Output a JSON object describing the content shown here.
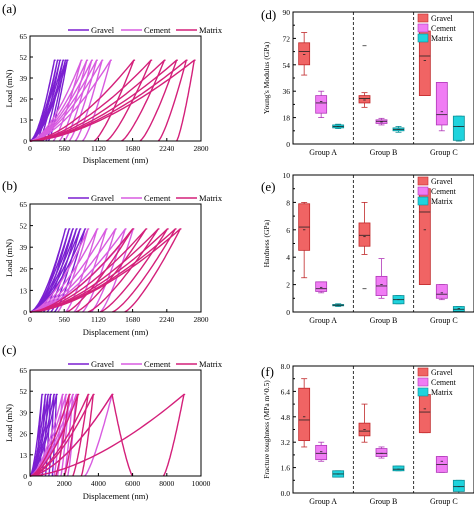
{
  "colors": {
    "gravel": "#7b1fd1",
    "cement": "#d85be0",
    "matrix": "#d4207a",
    "box_gravel": "#f06464",
    "box_cement": "#f07cf4",
    "box_matrix": "#1fd3dd"
  },
  "chart_data": [
    {
      "panel": "(a)",
      "type": "line",
      "xlabel": "Displacement (nm)",
      "ylabel": "Load (mN)",
      "xlim": [
        0,
        2800
      ],
      "ylim": [
        0,
        65
      ],
      "xticks": [
        "0",
        "560",
        "1120",
        "1680",
        "2240",
        "2800"
      ],
      "yticks": [
        "0",
        "13",
        "26",
        "39",
        "52",
        "65"
      ],
      "legend": "top",
      "series": [
        {
          "name": "Gravel",
          "color": "#7b1fd1",
          "curves": [
            {
              "residual": 60,
              "peak": 400
            },
            {
              "residual": 110,
              "peak": 450
            },
            {
              "residual": 150,
              "peak": 490
            },
            {
              "residual": 210,
              "peak": 540
            },
            {
              "residual": 260,
              "peak": 580
            },
            {
              "residual": 300,
              "peak": 610
            }
          ]
        },
        {
          "name": "Cement",
          "color": "#d85be0",
          "curves": [
            {
              "residual": 380,
              "peak": 840
            },
            {
              "residual": 480,
              "peak": 930
            },
            {
              "residual": 560,
              "peak": 1010
            },
            {
              "residual": 640,
              "peak": 1090
            },
            {
              "residual": 740,
              "peak": 1180
            },
            {
              "residual": 860,
              "peak": 1320
            }
          ]
        },
        {
          "name": "Matrix",
          "color": "#d4207a",
          "curves": [
            {
              "residual": 1050,
              "peak": 1700
            },
            {
              "residual": 1250,
              "peak": 1980
            },
            {
              "residual": 1500,
              "peak": 2200
            },
            {
              "residual": 1800,
              "peak": 2400
            },
            {
              "residual": 2100,
              "peak": 2560
            },
            {
              "residual": 2400,
              "peak": 2690
            }
          ]
        }
      ]
    },
    {
      "panel": "(b)",
      "type": "line",
      "xlabel": "Displacement (nm)",
      "ylabel": "Load (mN)",
      "xlim": [
        0,
        2800
      ],
      "ylim": [
        0,
        65
      ],
      "xticks": [
        "0",
        "560",
        "1120",
        "1680",
        "2240",
        "2800"
      ],
      "yticks": [
        "0",
        "13",
        "26",
        "39",
        "52",
        "65"
      ],
      "legend": "top",
      "series": [
        {
          "name": "Gravel",
          "color": "#7b1fd1",
          "curves": [
            {
              "residual": 120,
              "peak": 580
            },
            {
              "residual": 170,
              "peak": 640
            },
            {
              "residual": 220,
              "peak": 700
            },
            {
              "residual": 280,
              "peak": 760
            },
            {
              "residual": 340,
              "peak": 820
            },
            {
              "residual": 400,
              "peak": 900
            }
          ]
        },
        {
          "name": "Cement",
          "color": "#d85be0",
          "curves": [
            {
              "residual": 450,
              "peak": 950
            },
            {
              "residual": 580,
              "peak": 1100
            },
            {
              "residual": 720,
              "peak": 1250
            },
            {
              "residual": 860,
              "peak": 1400
            },
            {
              "residual": 1000,
              "peak": 1560
            },
            {
              "residual": 1150,
              "peak": 1690
            }
          ]
        },
        {
          "name": "Matrix",
          "color": "#d4207a",
          "curves": [
            {
              "residual": 600,
              "peak": 1680
            },
            {
              "residual": 750,
              "peak": 1900
            },
            {
              "residual": 950,
              "peak": 2100
            },
            {
              "residual": 1150,
              "peak": 2250
            },
            {
              "residual": 1350,
              "peak": 2380
            },
            {
              "residual": 1550,
              "peak": 2460
            }
          ]
        }
      ]
    },
    {
      "panel": "(c)",
      "type": "line",
      "xlabel": "Displacement (nm)",
      "ylabel": "Load (mN)",
      "xlim": [
        0,
        10000
      ],
      "ylim": [
        0,
        65
      ],
      "xticks": [
        "0",
        "2000",
        "4000",
        "6000",
        "8000",
        "10000"
      ],
      "yticks": [
        "0",
        "13",
        "26",
        "39",
        "52",
        "65"
      ],
      "legend": "top",
      "series": [
        {
          "name": "Gravel",
          "color": "#7b1fd1",
          "curves": [
            {
              "residual": 300,
              "peak": 700
            },
            {
              "residual": 500,
              "peak": 900
            },
            {
              "residual": 700,
              "peak": 1050
            },
            {
              "residual": 900,
              "peak": 1200
            },
            {
              "residual": 1100,
              "peak": 1400
            },
            {
              "residual": 1300,
              "peak": 1550
            }
          ]
        },
        {
          "name": "Cement",
          "color": "#d85be0",
          "curves": [
            {
              "residual": 1400,
              "peak": 1900
            },
            {
              "residual": 1600,
              "peak": 2100
            },
            {
              "residual": 1800,
              "peak": 2300
            },
            {
              "residual": 2000,
              "peak": 2500
            },
            {
              "residual": 3200,
              "peak": 4800
            },
            {
              "residual": 2200,
              "peak": 2700
            }
          ]
        },
        {
          "name": "Matrix",
          "color": "#d4207a",
          "curves": [
            {
              "residual": 1500,
              "peak": 2300
            },
            {
              "residual": 2000,
              "peak": 2800
            },
            {
              "residual": 2500,
              "peak": 3400
            },
            {
              "residual": 3000,
              "peak": 3700
            },
            {
              "residual": 6000,
              "peak": 4800
            },
            {
              "residual": 7800,
              "peak": 9000
            }
          ]
        }
      ]
    },
    {
      "panel": "(d)",
      "type": "box",
      "ylabel": "Young's Modulus (GPa)",
      "ylim": [
        0,
        90
      ],
      "yticks": [
        "0",
        "18",
        "36",
        "54",
        "72",
        "90"
      ],
      "minorticks": [
        9,
        27,
        45,
        63,
        81
      ],
      "categories": [
        "Group A",
        "Group B",
        "Group C"
      ],
      "legend": "top-right",
      "series_names": [
        "Gravel",
        "Cement",
        "Matrix"
      ],
      "boxes": [
        [
          {
            "min": 47,
            "q1": 54,
            "median": 63,
            "mean": 61,
            "q3": 69,
            "max": 76
          },
          {
            "min": 18,
            "q1": 21,
            "median": 28,
            "mean": 29,
            "q3": 33,
            "max": 36
          },
          {
            "min": 10.5,
            "q1": 11,
            "median": 12,
            "mean": 12,
            "q3": 13,
            "max": 13.5
          }
        ],
        [
          {
            "min": 25,
            "q1": 28,
            "median": 31,
            "mean": 30,
            "q3": 33,
            "max": 35,
            "outliers": [
              67
            ]
          },
          {
            "min": 13,
            "q1": 14,
            "median": 15.5,
            "mean": 15,
            "q3": 16.5,
            "max": 17.5
          },
          {
            "min": 8,
            "q1": 9,
            "median": 10,
            "mean": 10,
            "q3": 11,
            "max": 12
          }
        ],
        [
          {
            "min": 33,
            "q1": 33,
            "median": 60,
            "mean": 57,
            "q3": 77,
            "max": 78
          },
          {
            "min": 9,
            "q1": 13,
            "median": 20,
            "mean": 22,
            "q3": 42,
            "max": 42
          },
          {
            "min": 2,
            "q1": 2.5,
            "median": 12,
            "mean": 12,
            "q3": 19,
            "max": 19
          }
        ]
      ]
    },
    {
      "panel": "(e)",
      "type": "box",
      "ylabel": "Hardness (GPa)",
      "ylim": [
        0,
        10
      ],
      "yticks": [
        "0",
        "2",
        "4",
        "6",
        "8",
        "10"
      ],
      "minorticks": [
        1,
        3,
        5,
        7,
        9
      ],
      "categories": [
        "Group A",
        "Group B",
        "Group C"
      ],
      "legend": "top-right",
      "series_names": [
        "Gravel",
        "Cement",
        "Matrix"
      ],
      "boxes": [
        [
          {
            "min": 2.5,
            "q1": 4.5,
            "median": 6.2,
            "mean": 6.0,
            "q3": 7.9,
            "max": 8.0
          },
          {
            "min": 1.4,
            "q1": 1.5,
            "median": 1.7,
            "mean": 1.8,
            "q3": 2.2,
            "max": 2.2
          },
          {
            "min": 0.4,
            "q1": 0.45,
            "median": 0.5,
            "mean": 0.5,
            "q3": 0.55,
            "max": 0.6
          }
        ],
        [
          {
            "min": 4.2,
            "q1": 4.8,
            "median": 5.6,
            "mean": 5.5,
            "q3": 6.5,
            "max": 8.0,
            "outliers": [
              1.7
            ]
          },
          {
            "min": 1.0,
            "q1": 1.2,
            "median": 1.9,
            "mean": 2.0,
            "q3": 2.6,
            "max": 3.9
          },
          {
            "min": 0.6,
            "q1": 0.6,
            "median": 0.9,
            "mean": 0.9,
            "q3": 1.2,
            "max": 1.2
          }
        ],
        [
          {
            "min": 2.0,
            "q1": 2.0,
            "median": 7.3,
            "mean": 6.0,
            "q3": 9.0,
            "max": 9.0
          },
          {
            "min": 0.9,
            "q1": 1.0,
            "median": 1.3,
            "mean": 1.4,
            "q3": 2.0,
            "max": 2.0
          },
          {
            "min": 0.0,
            "q1": 0.05,
            "median": 0.2,
            "mean": 0.25,
            "q3": 0.4,
            "max": 0.4
          }
        ]
      ]
    },
    {
      "panel": "(f)",
      "type": "box",
      "ylabel": "Fracture toughness (MPa m^0.5)",
      "ylim": [
        0,
        8
      ],
      "yticks": [
        "0.0",
        "1.6",
        "3.2",
        "4.8",
        "6.4",
        "8.0"
      ],
      "minorticks": [
        0.8,
        2.4,
        4.0,
        5.6,
        7.2
      ],
      "categories": [
        "Group A",
        "Group B",
        "Group C"
      ],
      "legend": "top-right",
      "series_names": [
        "Gravel",
        "Cement",
        "Matrix"
      ],
      "boxes": [
        [
          {
            "min": 2.9,
            "q1": 3.3,
            "median": 4.6,
            "mean": 4.8,
            "q3": 6.6,
            "max": 7.2
          },
          {
            "min": 2.0,
            "q1": 2.1,
            "median": 2.5,
            "mean": 2.6,
            "q3": 3.0,
            "max": 3.2
          },
          {
            "min": 1.0,
            "q1": 1.0,
            "median": 1.2,
            "mean": 1.2,
            "q3": 1.4,
            "max": 1.4
          }
        ],
        [
          {
            "min": 3.2,
            "q1": 3.6,
            "median": 3.9,
            "mean": 4.0,
            "q3": 4.4,
            "max": 5.6
          },
          {
            "min": 2.2,
            "q1": 2.3,
            "median": 2.5,
            "mean": 2.5,
            "q3": 2.8,
            "max": 2.9
          },
          {
            "min": 1.4,
            "q1": 1.4,
            "median": 1.5,
            "mean": 1.5,
            "q3": 1.7,
            "max": 1.7
          }
        ],
        [
          {
            "min": 3.8,
            "q1": 3.8,
            "median": 5.1,
            "mean": 5.3,
            "q3": 6.2,
            "max": 6.2
          },
          {
            "min": 1.3,
            "q1": 1.3,
            "median": 1.8,
            "mean": 2.0,
            "q3": 2.3,
            "max": 2.3
          },
          {
            "min": 0.0,
            "q1": 0.1,
            "median": 0.4,
            "mean": 0.4,
            "q3": 0.8,
            "max": 0.8
          }
        ]
      ]
    }
  ]
}
